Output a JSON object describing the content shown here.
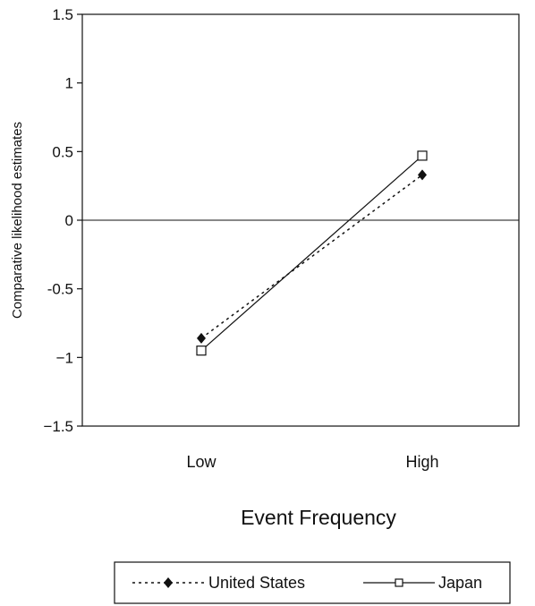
{
  "chart_data": {
    "type": "line",
    "title": "",
    "xlabel": "Event Frequency",
    "ylabel": "Comparative likelihood estimates",
    "categories": [
      "Low",
      "High"
    ],
    "ylim": [
      -1.5,
      1.5
    ],
    "yticks": [
      1.5,
      1,
      0.5,
      0,
      -0.5,
      -1,
      -1.5
    ],
    "ytick_labels": [
      "1.5",
      "1",
      "0.5",
      "0",
      "-0.5",
      "−1",
      "−1.5"
    ],
    "zero_line": true,
    "grid": false,
    "legend_position": "bottom",
    "series": [
      {
        "name": "United States",
        "values": [
          -0.86,
          0.33
        ],
        "line_style": "dotted",
        "marker": "filled-diamond",
        "color": "#111111"
      },
      {
        "name": "Japan",
        "values": [
          -0.95,
          0.47
        ],
        "line_style": "solid",
        "marker": "open-square",
        "color": "#111111"
      }
    ]
  }
}
